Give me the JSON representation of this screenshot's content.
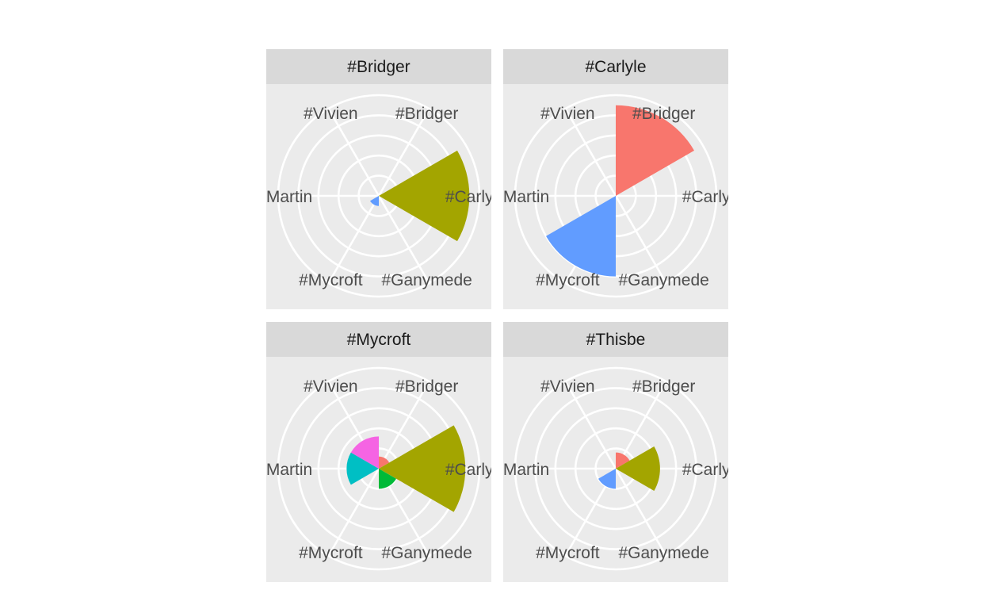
{
  "chart_data": {
    "type": "polar_bar",
    "facet_by": "panel",
    "categories": [
      "#Bridger",
      "#Carlyle",
      "#Ganymede",
      "#Mycroft",
      "#Martin",
      "#Vivien"
    ],
    "rlim": [
      0,
      5
    ],
    "r_gridlines": [
      1,
      2,
      3,
      4,
      5
    ],
    "grid": true,
    "legend": "none",
    "colors": {
      "#Bridger": "#F8766D",
      "#Carlyle": "#A3A500",
      "#Ganymede": "#00BA38",
      "#Mycroft": "#619CFF",
      "#Martin": "#00BFC4",
      "#Vivien": "#F564E3"
    },
    "panels": [
      {
        "title": "#Bridger",
        "values": [
          0,
          4.5,
          0,
          0.5,
          0,
          0
        ]
      },
      {
        "title": "#Carlyle",
        "values": [
          4.5,
          0,
          0,
          4.0,
          0,
          0
        ]
      },
      {
        "title": "#Mycroft",
        "values": [
          0.6,
          4.3,
          1.0,
          0,
          1.6,
          1.6
        ]
      },
      {
        "title": "#Thisbe",
        "values": [
          0.8,
          2.2,
          0,
          1.0,
          0,
          0
        ]
      }
    ]
  }
}
